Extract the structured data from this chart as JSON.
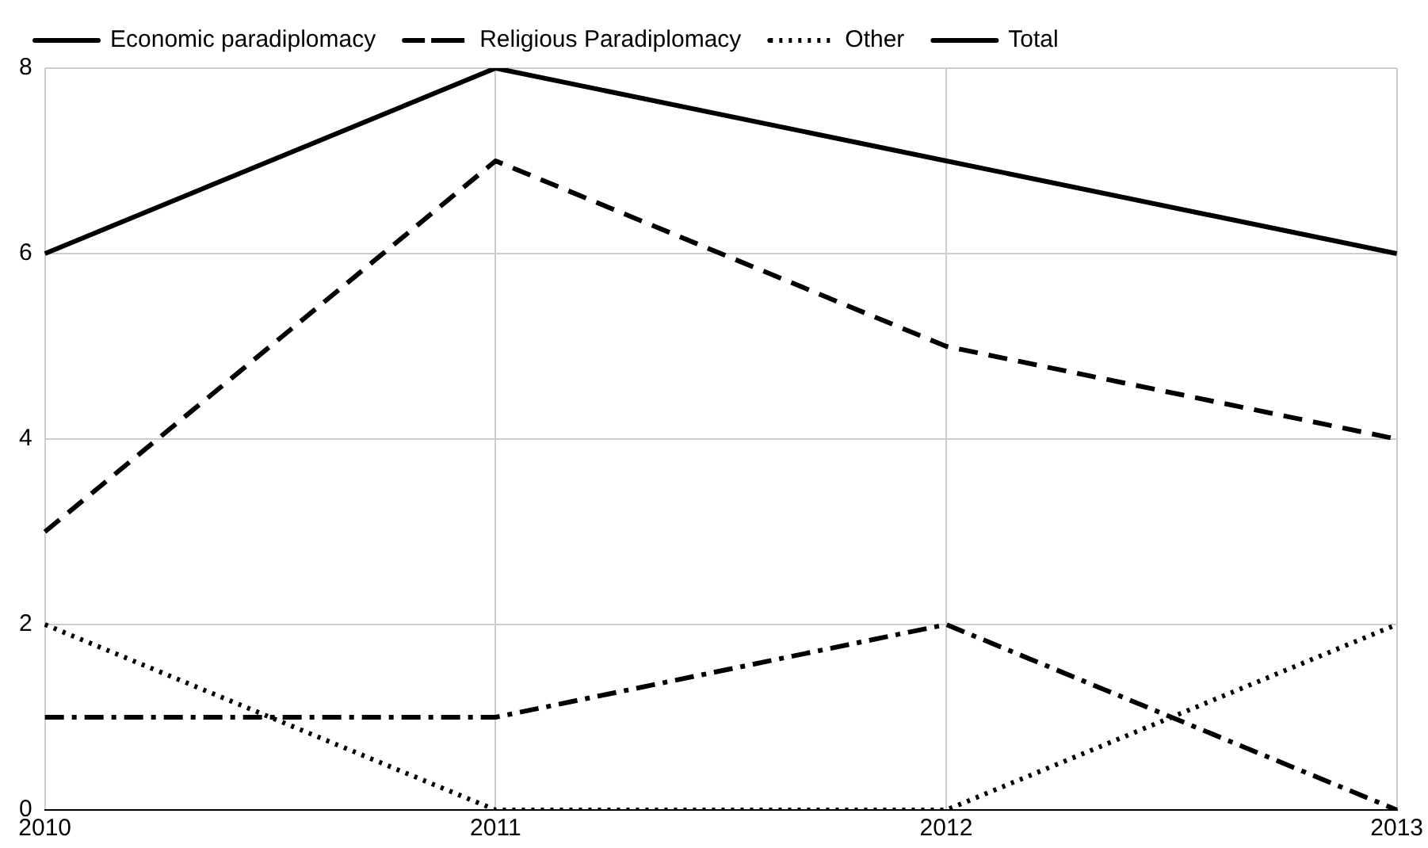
{
  "chart_data": {
    "type": "line",
    "categories": [
      "2010",
      "2011",
      "2012",
      "2013"
    ],
    "series": [
      {
        "name": "Economic paradiplomacy",
        "color": "#000000",
        "line_style": "dashed",
        "values": [
          3,
          7,
          5,
          4
        ]
      },
      {
        "name": "Religious Paradiplomacy",
        "color": "#000000",
        "line_style": "dashdot",
        "values": [
          1,
          1,
          2,
          0
        ]
      },
      {
        "name": "Other",
        "color": "#000000",
        "line_style": "dotted",
        "values": [
          2,
          0,
          0,
          2
        ]
      },
      {
        "name": "Total",
        "color": "#000000",
        "line_style": "solid",
        "values": [
          6,
          8,
          7,
          6
        ]
      }
    ],
    "ylim": [
      0,
      8
    ],
    "yticks": [
      0,
      2,
      4,
      6,
      8
    ],
    "grid": true,
    "legend": "top",
    "marker": "none"
  }
}
